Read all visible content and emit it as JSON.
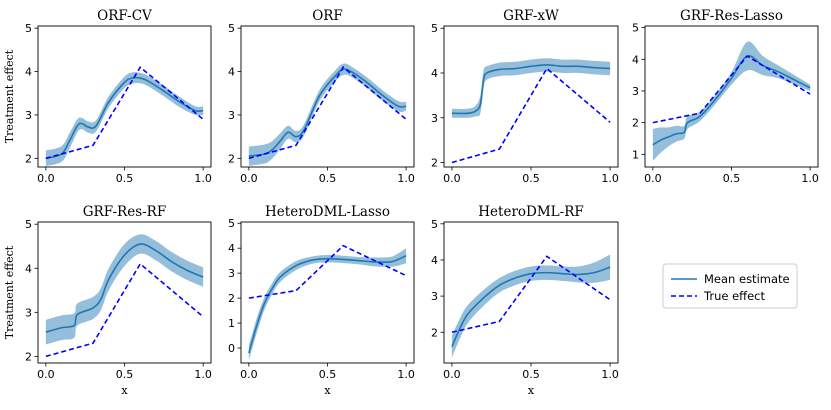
{
  "colors": {
    "mean": "#1f77b4",
    "band": "#8fbbd9",
    "true": "#0000ff"
  },
  "legend": {
    "mean_label": "Mean estimate",
    "true_label": "True effect"
  },
  "chart_data": [
    {
      "type": "line",
      "title": "ORF-CV",
      "xlabel": "",
      "ylabel": "Treatment effect",
      "xlim": [
        -0.05,
        1.05
      ],
      "ylim": [
        1.8,
        5.05
      ],
      "yticks": [
        2,
        3,
        4,
        5
      ],
      "xticks": [
        0.0,
        0.5,
        1.0
      ],
      "xtick_labels": [
        "0.0",
        "0.5",
        "1.0"
      ],
      "series": [
        {
          "name": "Mean estimate",
          "x": [
            0,
            0.1,
            0.15,
            0.2,
            0.23,
            0.27,
            0.32,
            0.4,
            0.5,
            0.55,
            0.6,
            0.65,
            0.75,
            0.85,
            0.95,
            1.0
          ],
          "y": [
            2.0,
            2.1,
            2.4,
            2.75,
            2.8,
            2.72,
            2.75,
            3.3,
            3.75,
            3.85,
            3.85,
            3.78,
            3.55,
            3.3,
            3.1,
            3.1
          ],
          "band": [
            0.18,
            0.18,
            0.18,
            0.15,
            0.13,
            0.13,
            0.13,
            0.13,
            0.13,
            0.13,
            0.12,
            0.12,
            0.12,
            0.12,
            0.1,
            0.1
          ]
        },
        {
          "name": "True effect",
          "x": [
            0,
            0.3,
            0.6,
            1.0
          ],
          "y": [
            2.0,
            2.3,
            4.1,
            2.9
          ]
        }
      ]
    },
    {
      "type": "line",
      "title": "ORF",
      "xlabel": "",
      "ylabel": "",
      "xlim": [
        -0.05,
        1.05
      ],
      "ylim": [
        1.8,
        5.05
      ],
      "yticks": [
        2,
        3,
        4,
        5
      ],
      "xticks": [
        0.0,
        0.5,
        1.0
      ],
      "xtick_labels": [
        "0.0",
        "0.5",
        "1.0"
      ],
      "series": [
        {
          "name": "Mean estimate",
          "x": [
            0,
            0.1,
            0.15,
            0.2,
            0.25,
            0.3,
            0.35,
            0.45,
            0.55,
            0.6,
            0.65,
            0.75,
            0.85,
            0.95,
            1.0
          ],
          "y": [
            2.05,
            2.1,
            2.2,
            2.4,
            2.6,
            2.5,
            2.65,
            3.45,
            3.9,
            4.05,
            4.0,
            3.75,
            3.45,
            3.2,
            3.2
          ],
          "band": [
            0.22,
            0.22,
            0.2,
            0.18,
            0.15,
            0.13,
            0.13,
            0.13,
            0.13,
            0.13,
            0.12,
            0.12,
            0.12,
            0.12,
            0.1
          ]
        },
        {
          "name": "True effect",
          "x": [
            0,
            0.3,
            0.6,
            1.0
          ],
          "y": [
            2.0,
            2.3,
            4.1,
            2.9
          ]
        }
      ]
    },
    {
      "type": "line",
      "title": "GRF-xW",
      "xlabel": "",
      "ylabel": "",
      "xlim": [
        -0.05,
        1.05
      ],
      "ylim": [
        1.9,
        5.05
      ],
      "yticks": [
        2,
        3,
        4,
        5
      ],
      "xticks": [
        0.0,
        0.5,
        1.0
      ],
      "xtick_labels": [
        "0.0",
        "0.5",
        "1.0"
      ],
      "series": [
        {
          "name": "Mean estimate",
          "x": [
            0,
            0.1,
            0.15,
            0.18,
            0.2,
            0.22,
            0.3,
            0.4,
            0.5,
            0.6,
            0.7,
            0.8,
            0.9,
            1.0
          ],
          "y": [
            3.1,
            3.1,
            3.15,
            3.3,
            3.85,
            4.0,
            4.08,
            4.1,
            4.15,
            4.18,
            4.15,
            4.15,
            4.12,
            4.1
          ],
          "band": [
            0.1,
            0.1,
            0.12,
            0.2,
            0.2,
            0.15,
            0.15,
            0.15,
            0.15,
            0.15,
            0.15,
            0.15,
            0.15,
            0.15
          ]
        },
        {
          "name": "True effect",
          "x": [
            0,
            0.3,
            0.6,
            1.0
          ],
          "y": [
            2.0,
            2.3,
            4.1,
            2.9
          ]
        }
      ]
    },
    {
      "type": "line",
      "title": "GRF-Res-Lasso",
      "xlabel": "",
      "ylabel": "",
      "xlim": [
        -0.05,
        1.05
      ],
      "ylim": [
        0.6,
        5.05
      ],
      "yticks": [
        1,
        2,
        3,
        4,
        5
      ],
      "xticks": [
        0.0,
        0.5,
        1.0
      ],
      "xtick_labels": [
        "0.0",
        "0.5",
        "1.0"
      ],
      "series": [
        {
          "name": "Mean estimate",
          "x": [
            0,
            0.05,
            0.1,
            0.15,
            0.2,
            0.22,
            0.3,
            0.4,
            0.5,
            0.6,
            0.7,
            0.8,
            0.9,
            1.0
          ],
          "y": [
            1.3,
            1.45,
            1.55,
            1.65,
            1.7,
            2.0,
            2.2,
            2.75,
            3.4,
            4.1,
            3.8,
            3.6,
            3.35,
            3.1
          ],
          "band": [
            0.5,
            0.4,
            0.3,
            0.25,
            0.2,
            0.2,
            0.15,
            0.15,
            0.2,
            0.45,
            0.3,
            0.2,
            0.15,
            0.1
          ]
        },
        {
          "name": "True effect",
          "x": [
            0,
            0.3,
            0.6,
            1.0
          ],
          "y": [
            2.0,
            2.3,
            4.1,
            2.9
          ]
        }
      ]
    },
    {
      "type": "line",
      "title": "GRF-Res-RF",
      "xlabel": "x",
      "ylabel": "Treatment effect",
      "xlim": [
        -0.05,
        1.05
      ],
      "ylim": [
        1.85,
        5.05
      ],
      "yticks": [
        2,
        3,
        4,
        5
      ],
      "xticks": [
        0.0,
        0.5,
        1.0
      ],
      "xtick_labels": [
        "0.0",
        "0.5",
        "1.0"
      ],
      "series": [
        {
          "name": "Mean estimate",
          "x": [
            0,
            0.1,
            0.18,
            0.2,
            0.3,
            0.35,
            0.4,
            0.5,
            0.6,
            0.7,
            0.8,
            0.9,
            1.0
          ],
          "y": [
            2.55,
            2.65,
            2.7,
            2.95,
            3.1,
            3.3,
            3.75,
            4.3,
            4.55,
            4.4,
            4.15,
            3.95,
            3.8
          ],
          "band": [
            0.28,
            0.28,
            0.28,
            0.25,
            0.25,
            0.25,
            0.25,
            0.25,
            0.22,
            0.22,
            0.22,
            0.22,
            0.22
          ]
        },
        {
          "name": "True effect",
          "x": [
            0,
            0.3,
            0.6,
            1.0
          ],
          "y": [
            2.0,
            2.3,
            4.1,
            2.9
          ]
        }
      ]
    },
    {
      "type": "line",
      "title": "HeteroDML-Lasso",
      "xlabel": "x",
      "ylabel": "",
      "xlim": [
        -0.05,
        1.05
      ],
      "ylim": [
        -0.6,
        5.05
      ],
      "yticks": [
        0,
        1,
        2,
        3,
        4,
        5
      ],
      "xticks": [
        0.0,
        0.5,
        1.0
      ],
      "xtick_labels": [
        "0.0",
        "0.5",
        "1.0"
      ],
      "series": [
        {
          "name": "Mean estimate",
          "x": [
            0,
            0.05,
            0.1,
            0.15,
            0.2,
            0.3,
            0.4,
            0.5,
            0.6,
            0.7,
            0.8,
            0.9,
            0.95,
            1.0
          ],
          "y": [
            -0.2,
            0.9,
            1.8,
            2.4,
            2.85,
            3.3,
            3.52,
            3.58,
            3.55,
            3.5,
            3.45,
            3.45,
            3.55,
            3.7
          ],
          "band": [
            0.3,
            0.3,
            0.25,
            0.22,
            0.2,
            0.18,
            0.15,
            0.15,
            0.15,
            0.15,
            0.18,
            0.2,
            0.25,
            0.3
          ]
        },
        {
          "name": "True effect",
          "x": [
            0,
            0.3,
            0.6,
            1.0
          ],
          "y": [
            2.0,
            2.3,
            4.1,
            2.9
          ]
        }
      ]
    },
    {
      "type": "line",
      "title": "HeteroDML-RF",
      "xlabel": "x",
      "ylabel": "",
      "xlim": [
        -0.05,
        1.05
      ],
      "ylim": [
        1.15,
        5.05
      ],
      "yticks": [
        2,
        3,
        4,
        5
      ],
      "xticks": [
        0.0,
        0.5,
        1.0
      ],
      "xtick_labels": [
        "0.0",
        "0.5",
        "1.0"
      ],
      "series": [
        {
          "name": "Mean estimate",
          "x": [
            0,
            0.05,
            0.1,
            0.2,
            0.3,
            0.4,
            0.5,
            0.6,
            0.7,
            0.8,
            0.9,
            1.0
          ],
          "y": [
            1.6,
            2.1,
            2.5,
            2.95,
            3.3,
            3.5,
            3.62,
            3.65,
            3.62,
            3.6,
            3.65,
            3.8
          ],
          "band": [
            0.3,
            0.28,
            0.25,
            0.22,
            0.2,
            0.2,
            0.2,
            0.2,
            0.2,
            0.22,
            0.28,
            0.35
          ]
        },
        {
          "name": "True effect",
          "x": [
            0,
            0.3,
            0.6,
            1.0
          ],
          "y": [
            2.0,
            2.3,
            4.1,
            2.9
          ]
        }
      ]
    }
  ]
}
